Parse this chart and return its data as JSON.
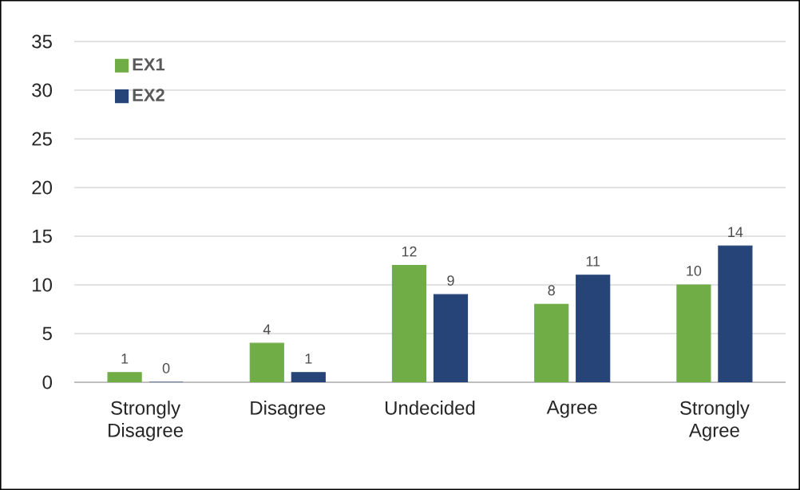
{
  "chart_data": {
    "type": "bar",
    "categories": [
      "Strongly Disagree",
      "Disagree",
      "Undecided",
      "Agree",
      "Strongly Agree"
    ],
    "series": [
      {
        "name": "EX1",
        "color": "#70ad47",
        "values": [
          1,
          4,
          12,
          8,
          10
        ]
      },
      {
        "name": "EX2",
        "color": "#264478",
        "values": [
          0,
          1,
          9,
          11,
          14
        ]
      }
    ],
    "ylim": [
      0,
      35
    ],
    "yticks": [
      0,
      5,
      10,
      15,
      20,
      25,
      30,
      35
    ],
    "grid": "y",
    "legend": "top left",
    "data_labels": true
  }
}
